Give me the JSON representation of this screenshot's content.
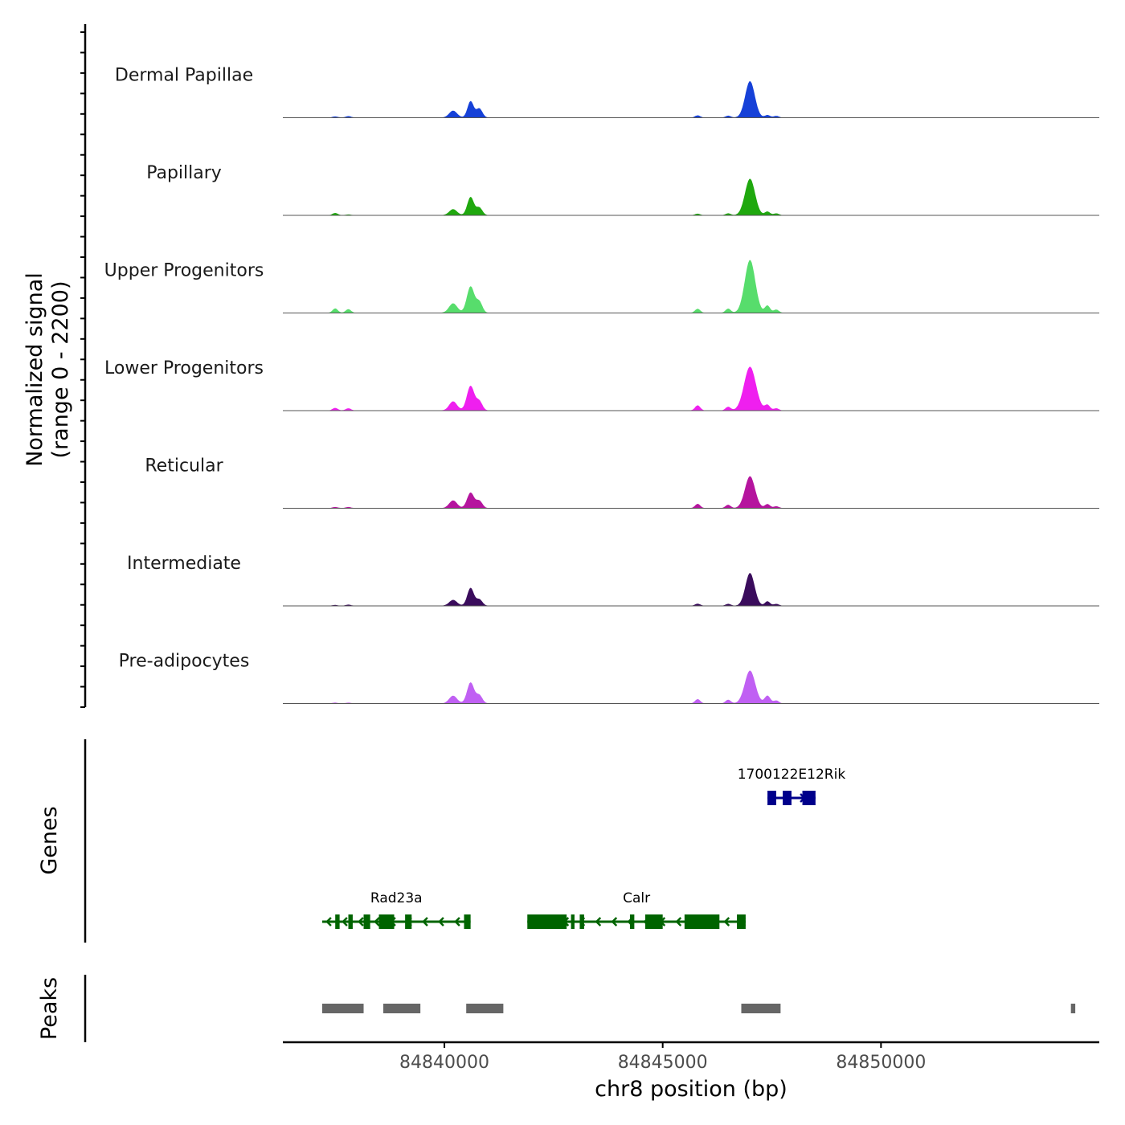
{
  "chart_data": {
    "type": "area",
    "title": "",
    "ylabel": "Normalized signal",
    "ylabel_range": "(range 0 - 2200)",
    "ylim": [
      0,
      2200
    ],
    "xlabel": "chr8 position (bp)",
    "xlim": [
      84836300,
      84855000
    ],
    "xticks": [
      84840000,
      84845000,
      84850000
    ],
    "xtick_labels": [
      "84840000",
      "84845000",
      "84850000"
    ],
    "peak_shape": [
      {
        "offset": -2.0,
        "w": 0.03
      },
      {
        "offset": -1.6,
        "w": 0.07
      },
      {
        "offset": -1.2,
        "w": 0.2
      },
      {
        "offset": -0.8,
        "w": 0.55
      },
      {
        "offset": -0.5,
        "w": 0.85
      },
      {
        "offset": -0.3,
        "w": 0.75
      },
      {
        "offset": -0.1,
        "w": 1.0
      },
      {
        "offset": 0.1,
        "w": 0.92
      },
      {
        "offset": 0.3,
        "w": 1.0
      },
      {
        "offset": 0.5,
        "w": 0.8
      },
      {
        "offset": 0.8,
        "w": 0.5
      },
      {
        "offset": 1.2,
        "w": 0.2
      },
      {
        "offset": 1.6,
        "w": 0.07
      },
      {
        "offset": 2.0,
        "w": 0.03
      }
    ],
    "series": [
      {
        "name": "Dermal Papillae",
        "color": "#1641d8",
        "peaks": [
          {
            "pos": 84837500,
            "h": 60,
            "sd": 60
          },
          {
            "pos": 84837800,
            "h": 80,
            "sd": 60
          },
          {
            "pos": 84840200,
            "h": 380,
            "sd": 90
          },
          {
            "pos": 84840600,
            "h": 900,
            "sd": 70
          },
          {
            "pos": 84840800,
            "h": 500,
            "sd": 70
          },
          {
            "pos": 84845800,
            "h": 120,
            "sd": 60
          },
          {
            "pos": 84846500,
            "h": 100,
            "sd": 60
          },
          {
            "pos": 84847000,
            "h": 2000,
            "sd": 110
          },
          {
            "pos": 84847400,
            "h": 140,
            "sd": 60
          },
          {
            "pos": 84847600,
            "h": 90,
            "sd": 60
          }
        ]
      },
      {
        "name": "Papillary",
        "color": "#1fa80e",
        "peaks": [
          {
            "pos": 84837500,
            "h": 120,
            "sd": 60
          },
          {
            "pos": 84837800,
            "h": 40,
            "sd": 60
          },
          {
            "pos": 84840200,
            "h": 330,
            "sd": 90
          },
          {
            "pos": 84840600,
            "h": 1000,
            "sd": 75
          },
          {
            "pos": 84840800,
            "h": 420,
            "sd": 70
          },
          {
            "pos": 84845800,
            "h": 80,
            "sd": 60
          },
          {
            "pos": 84846500,
            "h": 100,
            "sd": 60
          },
          {
            "pos": 84847000,
            "h": 2000,
            "sd": 115
          },
          {
            "pos": 84847400,
            "h": 200,
            "sd": 60
          },
          {
            "pos": 84847600,
            "h": 100,
            "sd": 60
          }
        ]
      },
      {
        "name": "Upper Progenitors",
        "color": "#57dd6c",
        "peaks": [
          {
            "pos": 84837500,
            "h": 240,
            "sd": 60
          },
          {
            "pos": 84837800,
            "h": 200,
            "sd": 60
          },
          {
            "pos": 84840200,
            "h": 520,
            "sd": 95
          },
          {
            "pos": 84840600,
            "h": 1450,
            "sd": 85
          },
          {
            "pos": 84840800,
            "h": 600,
            "sd": 70
          },
          {
            "pos": 84845800,
            "h": 220,
            "sd": 60
          },
          {
            "pos": 84846500,
            "h": 230,
            "sd": 60
          },
          {
            "pos": 84847000,
            "h": 2900,
            "sd": 120
          },
          {
            "pos": 84847400,
            "h": 400,
            "sd": 60
          },
          {
            "pos": 84847600,
            "h": 180,
            "sd": 60
          }
        ]
      },
      {
        "name": "Lower Progenitors",
        "color": "#ef1fef",
        "peaks": [
          {
            "pos": 84837500,
            "h": 140,
            "sd": 60
          },
          {
            "pos": 84837800,
            "h": 120,
            "sd": 60
          },
          {
            "pos": 84840200,
            "h": 500,
            "sd": 90
          },
          {
            "pos": 84840600,
            "h": 1350,
            "sd": 85
          },
          {
            "pos": 84840800,
            "h": 500,
            "sd": 70
          },
          {
            "pos": 84845800,
            "h": 280,
            "sd": 60
          },
          {
            "pos": 84846500,
            "h": 200,
            "sd": 60
          },
          {
            "pos": 84847000,
            "h": 2400,
            "sd": 135
          },
          {
            "pos": 84847400,
            "h": 300,
            "sd": 60
          },
          {
            "pos": 84847600,
            "h": 120,
            "sd": 60
          }
        ]
      },
      {
        "name": "Reticular",
        "color": "#b5159e",
        "peaks": [
          {
            "pos": 84837500,
            "h": 60,
            "sd": 60
          },
          {
            "pos": 84837800,
            "h": 60,
            "sd": 60
          },
          {
            "pos": 84840200,
            "h": 420,
            "sd": 90
          },
          {
            "pos": 84840600,
            "h": 850,
            "sd": 80
          },
          {
            "pos": 84840800,
            "h": 400,
            "sd": 70
          },
          {
            "pos": 84845800,
            "h": 230,
            "sd": 60
          },
          {
            "pos": 84846500,
            "h": 180,
            "sd": 60
          },
          {
            "pos": 84847000,
            "h": 1750,
            "sd": 115
          },
          {
            "pos": 84847400,
            "h": 220,
            "sd": 60
          },
          {
            "pos": 84847600,
            "h": 100,
            "sd": 60
          }
        ]
      },
      {
        "name": "Intermediate",
        "color": "#3a0c5c",
        "peaks": [
          {
            "pos": 84837500,
            "h": 40,
            "sd": 60
          },
          {
            "pos": 84837800,
            "h": 60,
            "sd": 60
          },
          {
            "pos": 84840200,
            "h": 320,
            "sd": 90
          },
          {
            "pos": 84840600,
            "h": 980,
            "sd": 75
          },
          {
            "pos": 84840800,
            "h": 350,
            "sd": 70
          },
          {
            "pos": 84845800,
            "h": 110,
            "sd": 60
          },
          {
            "pos": 84846500,
            "h": 100,
            "sd": 60
          },
          {
            "pos": 84847000,
            "h": 1800,
            "sd": 105
          },
          {
            "pos": 84847400,
            "h": 240,
            "sd": 60
          },
          {
            "pos": 84847600,
            "h": 100,
            "sd": 60
          }
        ]
      },
      {
        "name": "Pre-adipocytes",
        "color": "#c060f3",
        "peaks": [
          {
            "pos": 84837500,
            "h": 40,
            "sd": 60
          },
          {
            "pos": 84837800,
            "h": 40,
            "sd": 60
          },
          {
            "pos": 84840200,
            "h": 420,
            "sd": 90
          },
          {
            "pos": 84840600,
            "h": 1150,
            "sd": 80
          },
          {
            "pos": 84840800,
            "h": 450,
            "sd": 70
          },
          {
            "pos": 84845800,
            "h": 230,
            "sd": 60
          },
          {
            "pos": 84846500,
            "h": 200,
            "sd": 60
          },
          {
            "pos": 84847000,
            "h": 1800,
            "sd": 120
          },
          {
            "pos": 84847400,
            "h": 420,
            "sd": 65
          },
          {
            "pos": 84847600,
            "h": 160,
            "sd": 60
          }
        ]
      }
    ],
    "genes_track": {
      "label": "Genes",
      "genes": [
        {
          "name": "Rad23a",
          "strand": "-",
          "start": 84837200,
          "end": 84840600,
          "color": "#006400",
          "exons": [
            [
              84840450,
              84840600
            ],
            [
              84839100,
              84839250
            ],
            [
              84838500,
              84838850
            ],
            [
              84838150,
              84838300
            ],
            [
              84837800,
              84837900
            ],
            [
              84837500,
              84837600
            ]
          ]
        },
        {
          "name": "Calr",
          "strand": "-",
          "start": 84841900,
          "end": 84846900,
          "color": "#006400",
          "exons": [
            [
              84846700,
              84846900
            ],
            [
              84845500,
              84846300
            ],
            [
              84844600,
              84845000
            ],
            [
              84844250,
              84844350
            ],
            [
              84843100,
              84843200
            ],
            [
              84842900,
              84842980
            ],
            [
              84841900,
              84842800
            ]
          ]
        },
        {
          "name": "1700122E12Rik",
          "strand": "+",
          "start": 84847400,
          "end": 84848500,
          "color": "#00008b",
          "exons": [
            [
              84847400,
              84847600
            ],
            [
              84847750,
              84847950
            ],
            [
              84848200,
              84848500
            ]
          ]
        }
      ]
    },
    "peaks_track": {
      "label": "Peaks",
      "color": "#666666",
      "regions": [
        [
          84837200,
          84838150
        ],
        [
          84838600,
          84839450
        ],
        [
          84840500,
          84841350
        ],
        [
          84846800,
          84847700
        ],
        [
          84854350,
          84854450
        ]
      ]
    }
  }
}
